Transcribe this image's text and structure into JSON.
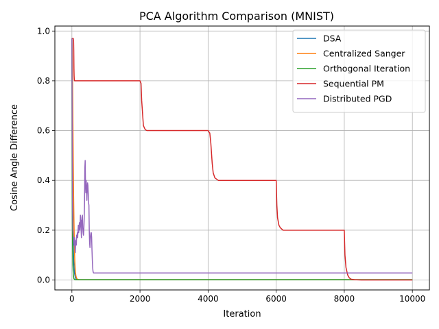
{
  "chart_data": {
    "type": "line",
    "title": "PCA Algorithm Comparison (MNIST)",
    "xlabel": "Iteration",
    "ylabel": "Cosine Angle Difference",
    "xlim": [
      -500,
      10500
    ],
    "ylim": [
      -0.04,
      1.02
    ],
    "xticks": [
      0,
      2000,
      4000,
      6000,
      8000,
      10000
    ],
    "xtick_labels": [
      "0",
      "2000",
      "4000",
      "6000",
      "8000",
      "10000"
    ],
    "yticks": [
      0.0,
      0.2,
      0.4,
      0.6,
      0.8,
      1.0
    ],
    "ytick_labels": [
      "0.0",
      "0.2",
      "0.4",
      "0.6",
      "0.8",
      "1.0"
    ],
    "grid": true,
    "legend_position": "top-right",
    "series": [
      {
        "name": "DSA",
        "color": "#1f77b4",
        "x": [
          0,
          5,
          10,
          15,
          20,
          30,
          40,
          50,
          60,
          70,
          80,
          100,
          120,
          150,
          200,
          400,
          10000
        ],
        "y": [
          0.97,
          0.9,
          0.75,
          0.55,
          0.38,
          0.22,
          0.14,
          0.09,
          0.06,
          0.04,
          0.025,
          0.01,
          0.005,
          0.002,
          0.001,
          0.001,
          0.001
        ]
      },
      {
        "name": "Centralized Sanger",
        "color": "#ff7f0e",
        "x": [
          0,
          10,
          20,
          30,
          40,
          50,
          60,
          70,
          80,
          90,
          100,
          120,
          140,
          160,
          200,
          300,
          10000
        ],
        "y": [
          0.97,
          0.9,
          0.78,
          0.62,
          0.47,
          0.34,
          0.24,
          0.16,
          0.1,
          0.06,
          0.035,
          0.015,
          0.007,
          0.003,
          0.001,
          0.001,
          0.001
        ]
      },
      {
        "name": "Orthogonal Iteration",
        "color": "#2ca02c",
        "x": [
          0,
          5,
          10,
          15,
          20,
          30,
          40,
          50,
          60,
          80,
          100,
          150,
          10000
        ],
        "y": [
          0.97,
          0.55,
          0.35,
          0.22,
          0.14,
          0.06,
          0.025,
          0.012,
          0.005,
          0.002,
          0.001,
          0.001,
          0.001
        ]
      },
      {
        "name": "Sequential PM",
        "color": "#d62728",
        "x": [
          0,
          20,
          40,
          50,
          55,
          60,
          65,
          70,
          80,
          100,
          2000,
          2030,
          2050,
          2080,
          2100,
          2150,
          2200,
          2300,
          4000,
          4050,
          4080,
          4120,
          4150,
          4200,
          4300,
          6000,
          6020,
          6040,
          6080,
          6120,
          6200,
          6300,
          8000,
          8020,
          8050,
          8100,
          8150,
          8200,
          8300,
          8500,
          10000
        ],
        "y": [
          0.97,
          0.97,
          0.97,
          0.96,
          0.92,
          0.85,
          0.82,
          0.805,
          0.8,
          0.8,
          0.8,
          0.79,
          0.72,
          0.66,
          0.62,
          0.605,
          0.6,
          0.6,
          0.6,
          0.59,
          0.55,
          0.47,
          0.43,
          0.41,
          0.4,
          0.4,
          0.3,
          0.25,
          0.22,
          0.21,
          0.2,
          0.2,
          0.2,
          0.1,
          0.05,
          0.02,
          0.008,
          0.003,
          0.001,
          0.0,
          0.0
        ]
      },
      {
        "name": "Distributed PGD",
        "color": "#9467bd",
        "x": [
          0,
          10,
          20,
          30,
          40,
          50,
          60,
          70,
          80,
          90,
          100,
          110,
          120,
          130,
          140,
          150,
          160,
          170,
          180,
          190,
          200,
          210,
          220,
          230,
          240,
          250,
          260,
          270,
          280,
          290,
          300,
          310,
          320,
          330,
          340,
          350,
          360,
          370,
          380,
          390,
          400,
          410,
          420,
          430,
          440,
          450,
          460,
          470,
          480,
          490,
          500,
          510,
          520,
          530,
          540,
          550,
          560,
          570,
          580,
          590,
          600,
          610,
          620,
          630,
          640,
          650,
          660,
          670,
          680,
          690,
          700,
          720,
          760,
          800,
          10000
        ],
        "y": [
          0.97,
          0.6,
          0.28,
          0.2,
          0.18,
          0.17,
          0.15,
          0.14,
          0.17,
          0.13,
          0.11,
          0.15,
          0.16,
          0.14,
          0.18,
          0.17,
          0.19,
          0.17,
          0.2,
          0.22,
          0.19,
          0.21,
          0.23,
          0.2,
          0.22,
          0.26,
          0.25,
          0.2,
          0.17,
          0.24,
          0.24,
          0.26,
          0.21,
          0.19,
          0.18,
          0.2,
          0.24,
          0.3,
          0.45,
          0.48,
          0.38,
          0.35,
          0.4,
          0.37,
          0.32,
          0.36,
          0.39,
          0.38,
          0.35,
          0.31,
          0.3,
          0.2,
          0.15,
          0.13,
          0.16,
          0.18,
          0.19,
          0.19,
          0.17,
          0.12,
          0.08,
          0.05,
          0.035,
          0.03,
          0.028,
          0.028,
          0.028,
          0.028,
          0.028,
          0.028,
          0.028,
          0.028,
          0.028,
          0.028,
          0.028
        ]
      }
    ]
  }
}
